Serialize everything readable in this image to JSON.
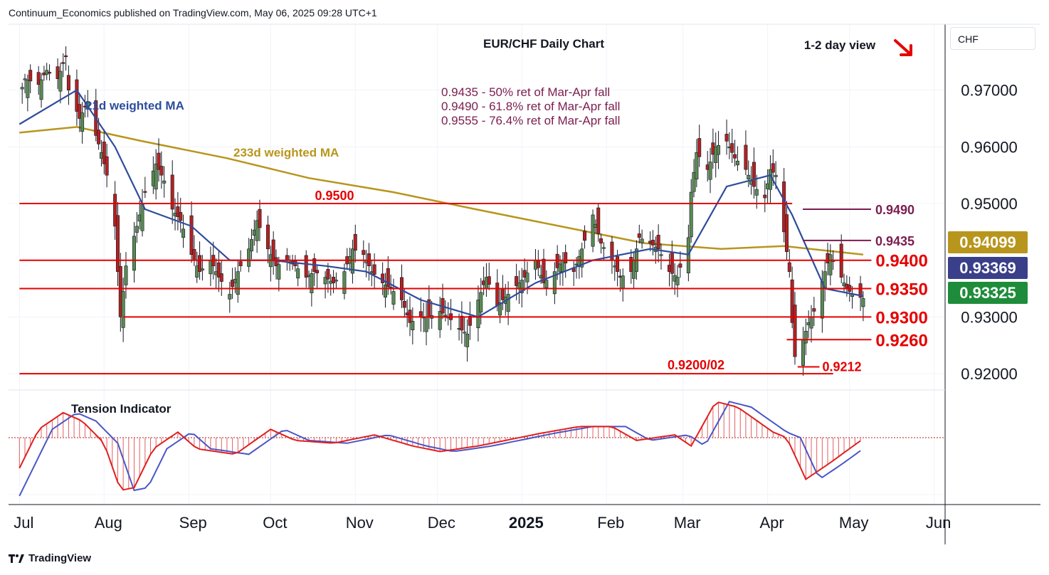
{
  "header": {
    "publisher": "Continuum_Economics published on TradingView.com, May 06, 2025 09:28 UTC+1"
  },
  "footer": {
    "brand": "TradingView"
  },
  "currency": "CHF",
  "colors": {
    "up": "#5a8a53",
    "down": "#b22222",
    "support": "#e60000",
    "ma21": "#2e4c9c",
    "ma233": "#b8951d",
    "fib": "#7b1d4f",
    "price_last": "#1e8c3a",
    "price_ma21": "#3a3f8a",
    "price_ma233": "#b8951d"
  },
  "chart_data": {
    "type": "line",
    "title": "EUR/CHF Daily Chart",
    "view": "1-2 day view",
    "view_direction": "down",
    "price_axis": {
      "ticks": [
        "0.97000",
        "0.96000",
        "0.95000",
        "0.93000",
        "0.92000"
      ],
      "range": [
        0.9175,
        0.9815
      ]
    },
    "time_axis": {
      "ticks": [
        "Jul",
        "Aug",
        "Sep",
        "Oct",
        "Nov",
        "Dec",
        "2025",
        "Feb",
        "Mar",
        "Apr",
        "May",
        "Jun"
      ]
    },
    "price_labels": [
      {
        "text": "0.94099",
        "value": 0.94099,
        "kind": "ma233"
      },
      {
        "text": "0.93369",
        "value": 0.93369,
        "kind": "ma21"
      },
      {
        "text": "0.93325",
        "value": 0.93325,
        "kind": "last"
      }
    ],
    "close_series": [
      [
        "2024-07-01",
        0.969
      ],
      [
        "2024-07-03",
        0.972
      ],
      [
        "2024-07-08",
        0.971
      ],
      [
        "2024-07-11",
        0.9735
      ],
      [
        "2024-07-15",
        0.972
      ],
      [
        "2024-07-18",
        0.976
      ],
      [
        "2024-07-19",
        0.97
      ],
      [
        "2024-07-23",
        0.965
      ],
      [
        "2024-07-26",
        0.968
      ],
      [
        "2024-07-29",
        0.962
      ],
      [
        "2024-07-31",
        0.959
      ],
      [
        "2024-08-02",
        0.955
      ],
      [
        "2024-08-05",
        0.946
      ],
      [
        "2024-08-06",
        0.938
      ],
      [
        "2024-08-07",
        0.93
      ],
      [
        "2024-08-09",
        0.939
      ],
      [
        "2024-08-13",
        0.946
      ],
      [
        "2024-08-16",
        0.952
      ],
      [
        "2024-08-20",
        0.957
      ],
      [
        "2024-08-23",
        0.954
      ],
      [
        "2024-08-26",
        0.949
      ],
      [
        "2024-08-29",
        0.947
      ],
      [
        "2024-09-02",
        0.941
      ],
      [
        "2024-09-05",
        0.938
      ],
      [
        "2024-09-09",
        0.94
      ],
      [
        "2024-09-12",
        0.937
      ],
      [
        "2024-09-16",
        0.934
      ],
      [
        "2024-09-19",
        0.938
      ],
      [
        "2024-09-23",
        0.942
      ],
      [
        "2024-09-26",
        0.947
      ],
      [
        "2024-09-30",
        0.942
      ],
      [
        "2024-10-03",
        0.939
      ],
      [
        "2024-10-07",
        0.94
      ],
      [
        "2024-10-10",
        0.939
      ],
      [
        "2024-10-14",
        0.937
      ],
      [
        "2024-10-17",
        0.938
      ],
      [
        "2024-10-21",
        0.937
      ],
      [
        "2024-10-24",
        0.936
      ],
      [
        "2024-10-28",
        0.938
      ],
      [
        "2024-10-31",
        0.942
      ],
      [
        "2024-11-04",
        0.941
      ],
      [
        "2024-11-07",
        0.938
      ],
      [
        "2024-11-11",
        0.936
      ],
      [
        "2024-11-14",
        0.935
      ],
      [
        "2024-11-18",
        0.933
      ],
      [
        "2024-11-21",
        0.929
      ],
      [
        "2024-11-25",
        0.93
      ],
      [
        "2024-11-28",
        0.93
      ],
      [
        "2024-12-02",
        0.931
      ],
      [
        "2024-12-05",
        0.93
      ],
      [
        "2024-12-09",
        0.928
      ],
      [
        "2024-12-12",
        0.927
      ],
      [
        "2024-12-16",
        0.933
      ],
      [
        "2024-12-19",
        0.937
      ],
      [
        "2024-12-23",
        0.932
      ],
      [
        "2024-12-27",
        0.934
      ],
      [
        "2025-01-02",
        0.937
      ],
      [
        "2025-01-06",
        0.94
      ],
      [
        "2025-01-09",
        0.936
      ],
      [
        "2025-01-13",
        0.938
      ],
      [
        "2025-01-16",
        0.94
      ],
      [
        "2025-01-20",
        0.938
      ],
      [
        "2025-01-23",
        0.942
      ],
      [
        "2025-01-27",
        0.948
      ],
      [
        "2025-01-30",
        0.943
      ],
      [
        "2025-02-03",
        0.94
      ],
      [
        "2025-02-06",
        0.937
      ],
      [
        "2025-02-10",
        0.938
      ],
      [
        "2025-02-13",
        0.944
      ],
      [
        "2025-02-17",
        0.943
      ],
      [
        "2025-02-20",
        0.942
      ],
      [
        "2025-02-24",
        0.938
      ],
      [
        "2025-02-27",
        0.937
      ],
      [
        "2025-03-03",
        0.944
      ],
      [
        "2025-03-04",
        0.952
      ],
      [
        "2025-03-06",
        0.959
      ],
      [
        "2025-03-10",
        0.956
      ],
      [
        "2025-03-13",
        0.96
      ],
      [
        "2025-03-17",
        0.961
      ],
      [
        "2025-03-20",
        0.958
      ],
      [
        "2025-03-24",
        0.956
      ],
      [
        "2025-03-27",
        0.953
      ],
      [
        "2025-03-31",
        0.951
      ],
      [
        "2025-04-02",
        0.956
      ],
      [
        "2025-04-04",
        0.955
      ],
      [
        "2025-04-07",
        0.945
      ],
      [
        "2025-04-09",
        0.938
      ],
      [
        "2025-04-10",
        0.929
      ],
      [
        "2025-04-11",
        0.923
      ],
      [
        "2025-04-14",
        0.926
      ],
      [
        "2025-04-16",
        0.929
      ],
      [
        "2025-04-18",
        0.931
      ],
      [
        "2025-04-22",
        0.938
      ],
      [
        "2025-04-24",
        0.941
      ],
      [
        "2025-04-28",
        0.937
      ],
      [
        "2025-04-30",
        0.935
      ],
      [
        "2025-05-02",
        0.934
      ],
      [
        "2025-05-06",
        0.93325
      ]
    ],
    "ma21_series": [
      [
        "2024-07-01",
        0.964
      ],
      [
        "2024-07-22",
        0.97
      ],
      [
        "2024-08-05",
        0.96
      ],
      [
        "2024-08-16",
        0.949
      ],
      [
        "2024-09-02",
        0.946
      ],
      [
        "2024-09-16",
        0.94
      ],
      [
        "2024-10-01",
        0.94
      ],
      [
        "2024-10-21",
        0.939
      ],
      [
        "2024-11-05",
        0.938
      ],
      [
        "2024-11-25",
        0.933
      ],
      [
        "2024-12-16",
        0.93
      ],
      [
        "2025-01-06",
        0.936
      ],
      [
        "2025-01-27",
        0.94
      ],
      [
        "2025-02-17",
        0.942
      ],
      [
        "2025-03-03",
        0.941
      ],
      [
        "2025-03-17",
        0.953
      ],
      [
        "2025-04-02",
        0.955
      ],
      [
        "2025-04-10",
        0.948
      ],
      [
        "2025-04-22",
        0.935
      ],
      [
        "2025-05-06",
        0.93369
      ]
    ],
    "ma233_series": [
      [
        "2024-07-01",
        0.9625
      ],
      [
        "2024-07-22",
        0.9635
      ],
      [
        "2024-08-15",
        0.961
      ],
      [
        "2024-09-15",
        0.958
      ],
      [
        "2024-10-15",
        0.9545
      ],
      [
        "2024-11-15",
        0.952
      ],
      [
        "2024-12-15",
        0.949
      ],
      [
        "2025-01-15",
        0.946
      ],
      [
        "2025-02-15",
        0.943
      ],
      [
        "2025-03-15",
        0.942
      ],
      [
        "2025-04-07",
        0.9425
      ],
      [
        "2025-05-06",
        0.94099
      ]
    ],
    "support_resistance": [
      {
        "text": "0.9500",
        "value": 0.95,
        "start": "2024-07-01",
        "end": "2025-04-10",
        "label_pos": "above"
      },
      {
        "text": "0.9400",
        "value": 0.94,
        "start": "2024-07-01",
        "end": "2025-05-09",
        "label_pos": "right"
      },
      {
        "text": "0.9350",
        "value": 0.935,
        "start": "2024-07-01",
        "end": "2025-05-09",
        "label_pos": "right"
      },
      {
        "text": "0.9300",
        "value": 0.93,
        "start": "2024-08-08",
        "end": "2025-05-09",
        "label_pos": "right"
      },
      {
        "text": "0.9260",
        "value": 0.926,
        "start": "2025-04-08",
        "end": "2025-05-09",
        "label_pos": "right"
      },
      {
        "text": "0.9212",
        "value": 0.9212,
        "start": "2025-04-12",
        "end": "2025-04-20",
        "label_pos": "right-small"
      },
      {
        "text": "0.9200/02",
        "value": 0.92,
        "start": "2024-07-01",
        "end": "2025-04-25",
        "label_pos": "above-left"
      }
    ],
    "fib_lines": [
      {
        "text": "0.9490",
        "value": 0.949
      },
      {
        "text": "0.9435",
        "value": 0.9435
      }
    ],
    "fib_notes": [
      "0.9435 - 50% ret of Mar-Apr fall",
      "0.9490 - 61.8% ret of Mar-Apr fall",
      "0.9555 - 76.4% ret of Mar-Apr fall"
    ],
    "ma_labels": {
      "ma21": "21d weighted MA",
      "ma233": "233d weighted MA"
    },
    "indicator": {
      "title": "Tension Indicator",
      "series": [
        [
          "2024-07-01",
          -0.55
        ],
        [
          "2024-07-08",
          0.15
        ],
        [
          "2024-07-17",
          0.45
        ],
        [
          "2024-07-24",
          0.3
        ],
        [
          "2024-08-01",
          -0.1
        ],
        [
          "2024-08-07",
          -0.95
        ],
        [
          "2024-08-12",
          -0.9
        ],
        [
          "2024-08-19",
          -0.2
        ],
        [
          "2024-08-28",
          0.1
        ],
        [
          "2024-09-04",
          -0.2
        ],
        [
          "2024-09-18",
          -0.3
        ],
        [
          "2024-10-01",
          0.15
        ],
        [
          "2024-10-10",
          -0.05
        ],
        [
          "2024-10-24",
          -0.1
        ],
        [
          "2024-11-08",
          0.05
        ],
        [
          "2024-11-22",
          -0.15
        ],
        [
          "2024-12-02",
          -0.25
        ],
        [
          "2024-12-16",
          -0.15
        ],
        [
          "2025-01-08",
          0.08
        ],
        [
          "2025-01-22",
          0.2
        ],
        [
          "2025-02-03",
          0.2
        ],
        [
          "2025-02-12",
          -0.05
        ],
        [
          "2025-02-26",
          0.05
        ],
        [
          "2025-03-04",
          -0.15
        ],
        [
          "2025-03-13",
          0.65
        ],
        [
          "2025-03-21",
          0.55
        ],
        [
          "2025-04-03",
          0.1
        ],
        [
          "2025-04-08",
          0.0
        ],
        [
          "2025-04-15",
          -0.75
        ],
        [
          "2025-04-24",
          -0.45
        ],
        [
          "2025-05-06",
          -0.02
        ]
      ]
    }
  }
}
